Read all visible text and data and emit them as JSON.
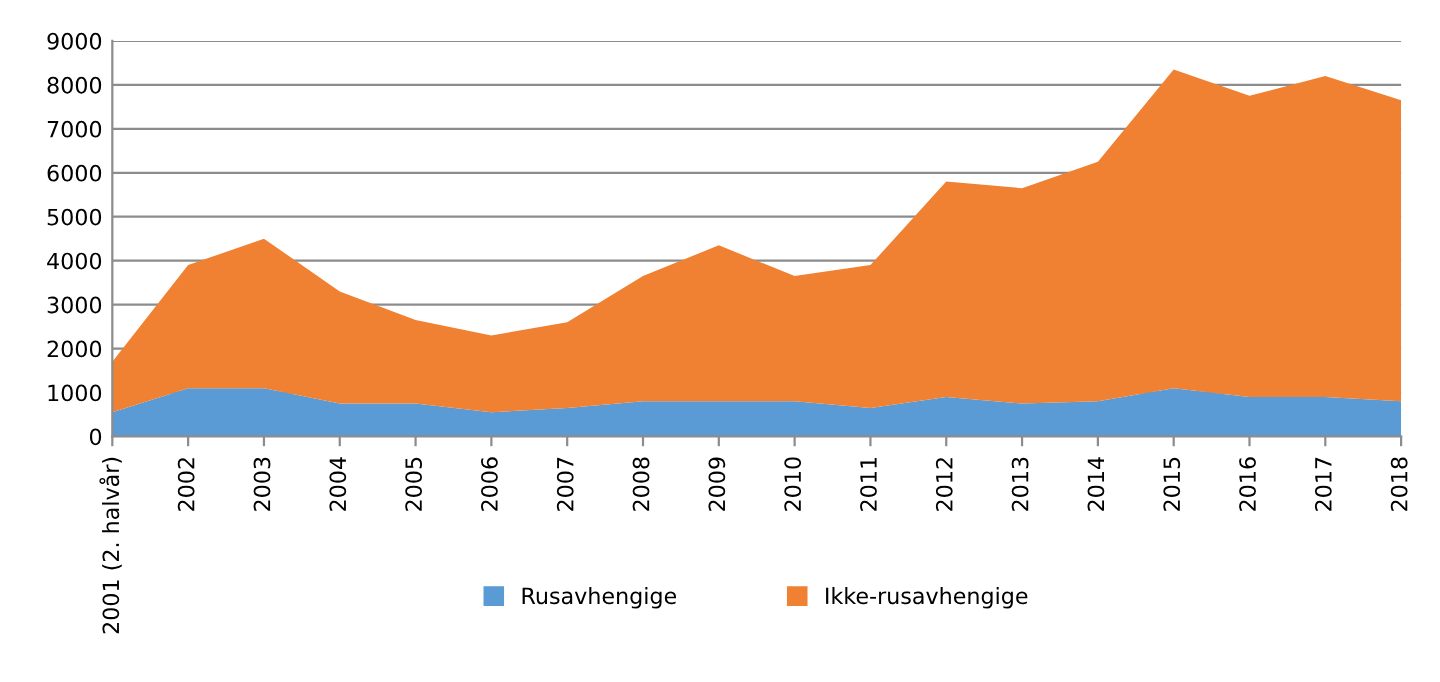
{
  "chart_data": {
    "type": "area",
    "stacked": true,
    "categories": [
      "2001 (2. halvår)",
      "2002",
      "2003",
      "2004",
      "2005",
      "2006",
      "2007",
      "2008",
      "2009",
      "2010",
      "2011",
      "2012",
      "2013",
      "2014",
      "2015",
      "2016",
      "2017",
      "2018"
    ],
    "series": [
      {
        "name": "Rusavhengige",
        "color": "#5b9bd5",
        "values": [
          550,
          1100,
          1100,
          750,
          750,
          550,
          650,
          800,
          800,
          800,
          650,
          900,
          750,
          800,
          1100,
          900,
          900,
          800
        ]
      },
      {
        "name": "Ikke-rusavhengige",
        "color": "#f08132",
        "values": [
          1150,
          2800,
          3400,
          2550,
          1900,
          1750,
          1950,
          2850,
          3550,
          2850,
          3250,
          4900,
          4900,
          5450,
          7250,
          6850,
          7300,
          6850
        ]
      }
    ],
    "ylim": [
      0,
      9000
    ],
    "yticks": [
      0,
      1000,
      2000,
      3000,
      4000,
      5000,
      6000,
      7000,
      8000,
      9000
    ],
    "grid": "y",
    "legend": "bottom"
  }
}
